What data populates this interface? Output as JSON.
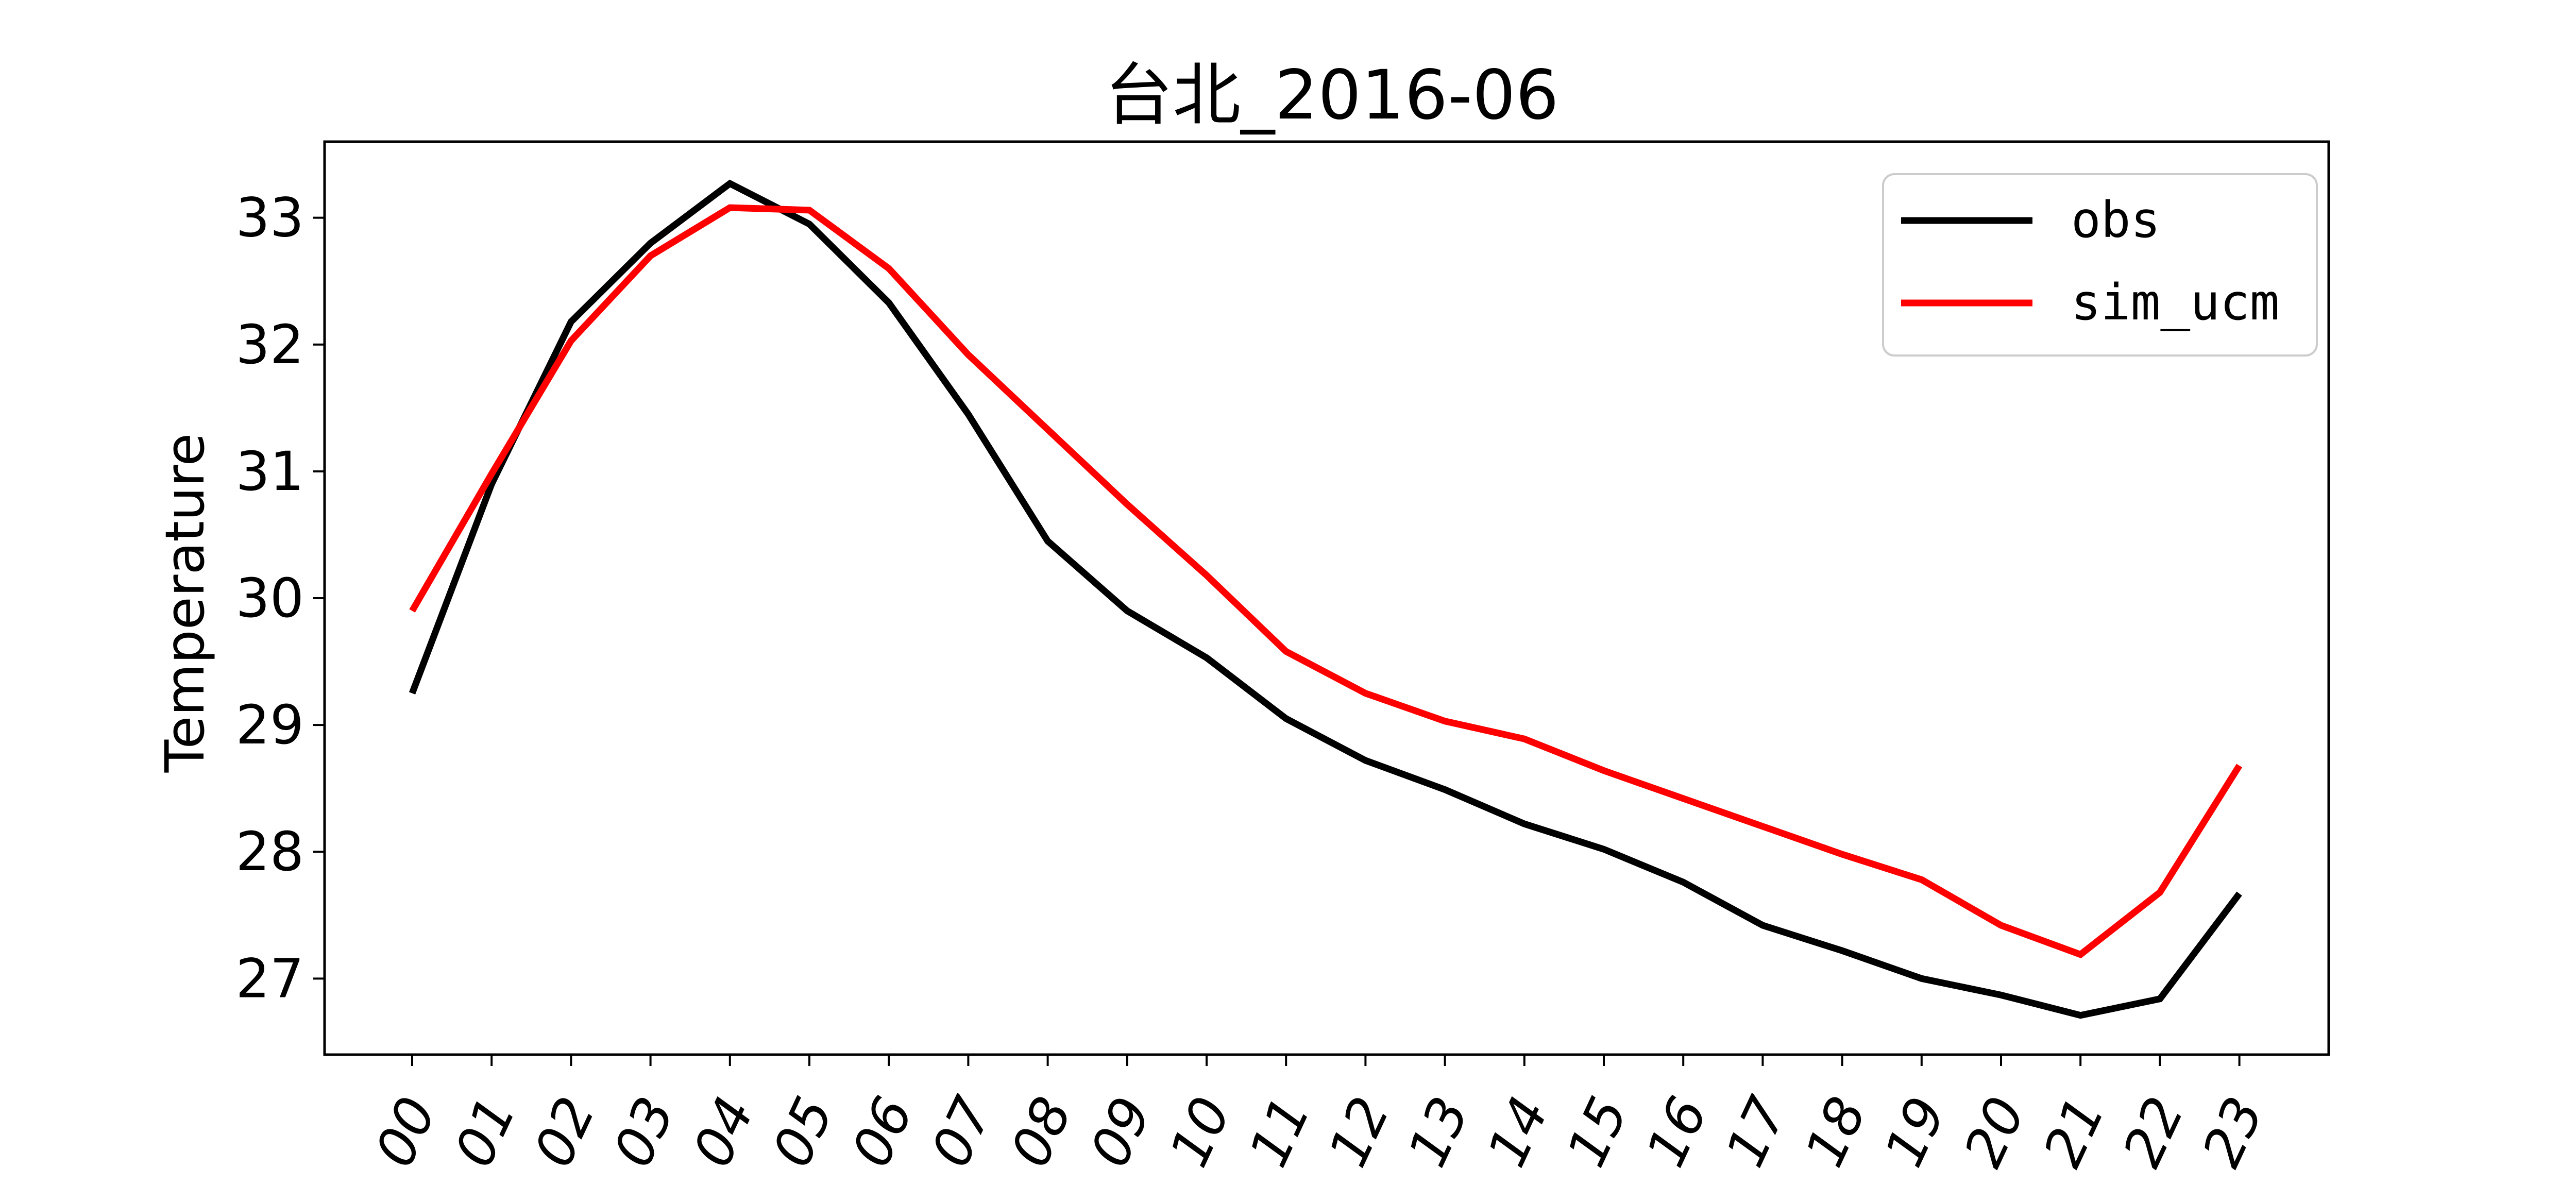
{
  "chart_data": {
    "type": "line",
    "title": "台北_2016-06",
    "xlabel": "",
    "ylabel": "Temperature",
    "categories": [
      "00",
      "01",
      "02",
      "03",
      "04",
      "05",
      "06",
      "07",
      "08",
      "09",
      "10",
      "11",
      "12",
      "13",
      "14",
      "15",
      "16",
      "17",
      "18",
      "19",
      "20",
      "21",
      "22",
      "23"
    ],
    "yticks": [
      27,
      28,
      29,
      30,
      31,
      32,
      33
    ],
    "ylim": [
      26.4,
      33.6
    ],
    "grid": false,
    "legend_position": "top-right",
    "series": [
      {
        "name": "obs",
        "color": "#000000",
        "values": [
          29.25,
          30.9,
          32.18,
          32.8,
          33.27,
          32.95,
          32.33,
          31.45,
          30.45,
          29.9,
          29.53,
          29.05,
          28.72,
          28.49,
          28.22,
          28.02,
          27.76,
          27.42,
          27.22,
          27.0,
          26.87,
          26.71,
          26.84,
          27.67
        ]
      },
      {
        "name": "sim_ucm",
        "color": "#ff0000",
        "values": [
          29.9,
          30.98,
          32.03,
          32.7,
          33.08,
          33.06,
          32.6,
          31.92,
          31.33,
          30.74,
          30.18,
          29.58,
          29.25,
          29.03,
          28.89,
          28.64,
          28.42,
          28.2,
          27.98,
          27.78,
          27.42,
          27.19,
          27.68,
          28.68
        ]
      }
    ]
  }
}
